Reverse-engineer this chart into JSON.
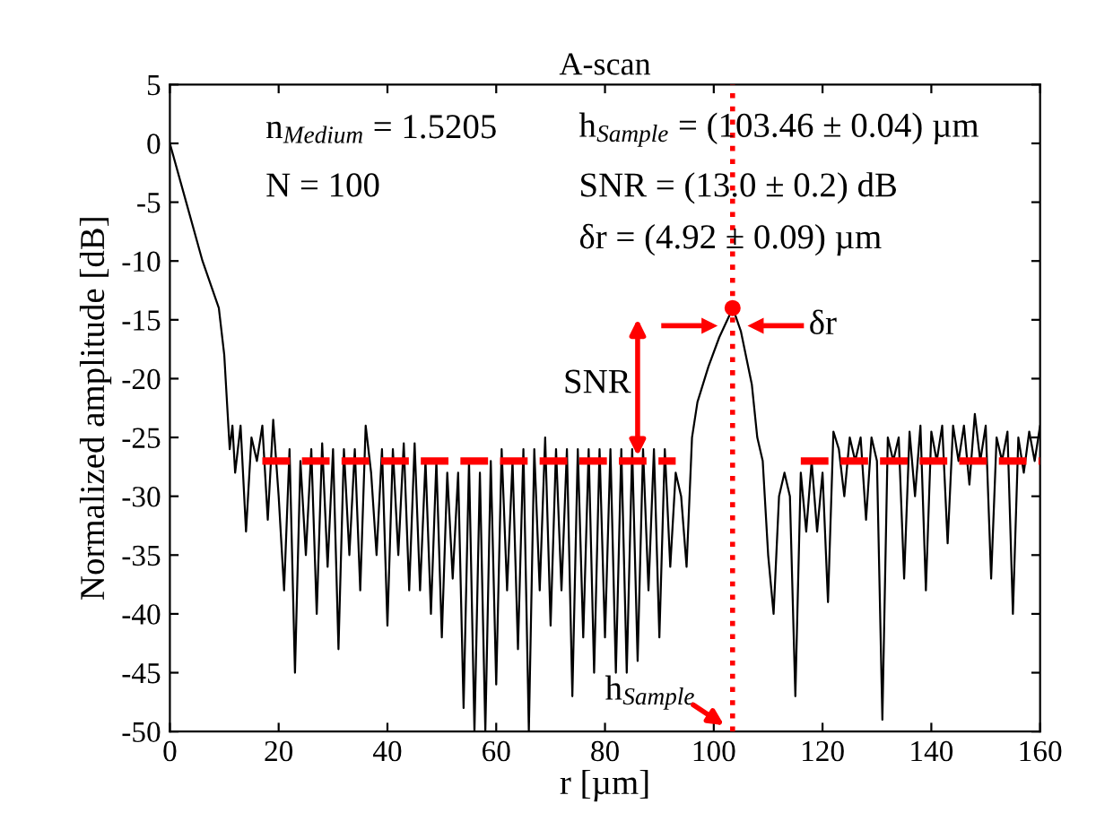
{
  "chart_data": {
    "type": "line",
    "title": "A-scan",
    "xlabel": "r [µm]",
    "ylabel": "Normalized amplitude [dB]",
    "xlim": [
      0,
      160
    ],
    "xticks": [
      0,
      20,
      40,
      60,
      80,
      100,
      120,
      140,
      160
    ],
    "ylim": [
      -50,
      5
    ],
    "yticks": [
      -50,
      -45,
      -40,
      -35,
      -30,
      -25,
      -20,
      -15,
      -10,
      -5,
      0,
      5
    ],
    "grid": false,
    "series": [
      {
        "color": "#000000",
        "x": [
          0,
          3,
          6,
          9,
          10,
          11,
          11.5,
          12,
          13,
          14,
          15,
          16,
          17,
          18,
          19,
          20,
          21,
          22,
          23,
          24,
          25,
          26,
          27,
          28,
          29,
          30,
          31,
          32,
          33,
          34,
          35,
          36,
          37,
          38,
          39,
          40,
          41,
          42,
          43,
          44,
          45,
          46,
          47,
          48,
          49,
          50,
          51,
          52,
          53,
          54,
          55,
          56,
          57,
          58,
          59,
          60,
          61,
          62,
          63,
          64,
          65,
          66,
          67,
          68,
          69,
          70,
          71,
          72,
          73,
          74,
          75,
          76,
          77,
          78,
          79,
          80,
          81,
          82,
          83,
          84,
          85,
          86,
          87,
          88,
          89,
          90,
          91,
          92,
          93,
          94,
          95,
          96,
          97,
          99,
          101,
          103.5,
          105,
          107,
          108,
          109,
          110,
          111,
          112,
          113,
          114,
          115,
          116,
          117,
          118,
          119,
          120,
          121,
          122,
          123,
          124,
          125,
          126,
          127,
          128,
          129,
          130,
          131,
          132,
          133,
          134,
          135,
          136,
          137,
          138,
          139,
          140,
          141,
          142,
          143,
          144,
          145,
          146,
          147,
          148,
          149,
          150,
          151,
          152,
          153,
          154,
          155,
          156,
          157,
          158,
          159,
          160
        ],
        "values": [
          0,
          -5,
          -10,
          -14,
          -18,
          -26,
          -24,
          -28,
          -24,
          -33,
          -25,
          -27,
          -24,
          -32,
          -23.5,
          -30,
          -38,
          -26,
          -45,
          -27,
          -35,
          -26,
          -40,
          -25.5,
          -36,
          -26,
          -43,
          -26,
          -35,
          -26,
          -38,
          -24,
          -28,
          -35,
          -26,
          -41,
          -26,
          -35,
          -25.5,
          -38,
          -25.5,
          -38,
          -27,
          -40,
          -27,
          -42,
          -28,
          -37,
          -28,
          -48,
          -27,
          -50,
          -28,
          -50,
          -27,
          -46,
          -26,
          -38,
          -27,
          -43,
          -26,
          -50,
          -26,
          -38,
          -25,
          -41,
          -26,
          -38,
          -26,
          -47,
          -26,
          -42,
          -26,
          -45,
          -26,
          -42,
          -26,
          -45,
          -26,
          -45,
          -26,
          -44,
          -26,
          -38,
          -26,
          -42,
          -26,
          -36,
          -28,
          -30,
          -36,
          -25,
          -22,
          -19,
          -16.5,
          -14,
          -16,
          -20.5,
          -25,
          -27,
          -35,
          -40,
          -30,
          -28,
          -30,
          -47,
          -28,
          -33,
          -27,
          -33,
          -28,
          -39,
          -24.5,
          -26,
          -30,
          -25,
          -27,
          -25,
          -32,
          -25,
          -27,
          -49,
          -25,
          -27,
          -25,
          -37,
          -24.5,
          -30,
          -24,
          -38,
          -24.5,
          -27,
          -24,
          -34,
          -24,
          -27,
          -24,
          -29,
          -23,
          -27,
          -24,
          -37,
          -25,
          -27,
          -24.5,
          -40,
          -25,
          -28,
          -24.5,
          -27,
          -24
        ]
      },
      {
        "type": "line",
        "color": "#ff0000",
        "line_style": "dashed",
        "x": [
          17,
          93
        ],
        "values": [
          -27,
          -27
        ]
      },
      {
        "type": "line",
        "color": "#ff0000",
        "line_style": "dashed",
        "x": [
          116,
          160
        ],
        "values": [
          -27,
          -27
        ]
      },
      {
        "type": "scatter",
        "color": "#ff0000",
        "marker": "circle",
        "x": [
          103.46
        ],
        "values": [
          -14
        ]
      }
    ],
    "ref_lines": [
      {
        "axis": "x",
        "value": 103.46,
        "color": "#ff0000",
        "line_style": "dotted"
      }
    ],
    "annotations": [
      "n$_{Medium}$ = 1.5205",
      "N = 100",
      "h$_{Sample}$ = (103.46 ± 0.04) µm",
      "SNR = (13.0 ± 0.2) dB",
      "δr = (4.92 ± 0.09) µm",
      {
        "text": "SNR",
        "x": 86,
        "y": -27
      },
      {
        "text": "δr",
        "x": 103.46,
        "y": -14
      },
      "h$_{Sample}$"
    ]
  }
}
